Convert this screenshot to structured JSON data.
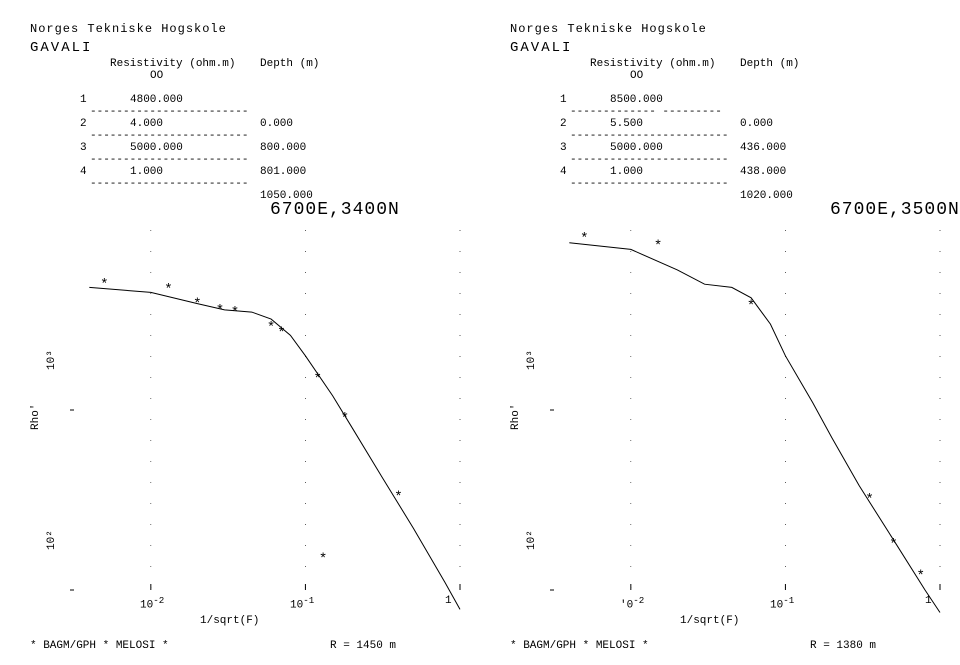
{
  "background_color": "#ffffff",
  "text_color": "#000000",
  "font_family": "Courier New",
  "panels": [
    {
      "org": "Norges Tekniske Hogskole",
      "title": "GAVALI",
      "table": {
        "header_res": "Resistivity (ohm.m)",
        "header_dep": "Depth (m)",
        "oo": "OO",
        "rows": [
          {
            "idx": "1",
            "depth": "0.000"
          },
          {
            "idx": "2",
            "depth": "800.000"
          },
          {
            "idx": "3",
            "depth": "801.000"
          },
          {
            "idx": "4",
            "depth": "1050.000"
          }
        ],
        "vals": [
          "4800.000",
          "4.000",
          "5000.000",
          "1.000"
        ]
      },
      "plot": {
        "title": "6700E,3400N",
        "type": "line+scatter",
        "xscale": "log",
        "yscale": "log",
        "xlabel": "1/sqrt(F)",
        "ylabel": "Rho'",
        "ylim": [
          100,
          10000
        ],
        "xlim": [
          0.003,
          1
        ],
        "xtick_labels": [
          "10⁻²",
          "10⁻¹",
          "1"
        ],
        "ytick_labels": [
          "10²",
          "10³"
        ],
        "line_color": "#000000",
        "marker_color": "#000000",
        "marker_symbol": "*",
        "line_width": 1,
        "line_points": [
          [
            0.004,
            4800
          ],
          [
            0.01,
            4500
          ],
          [
            0.02,
            3900
          ],
          [
            0.03,
            3600
          ],
          [
            0.045,
            3500
          ],
          [
            0.06,
            3200
          ],
          [
            0.08,
            2600
          ],
          [
            0.1,
            2000
          ],
          [
            0.15,
            1200
          ],
          [
            0.2,
            800
          ],
          [
            0.3,
            450
          ],
          [
            0.5,
            220
          ],
          [
            0.8,
            110
          ],
          [
            1.0,
            78
          ]
        ],
        "scatter_points": [
          [
            0.005,
            5000
          ],
          [
            0.013,
            4700
          ],
          [
            0.02,
            3900
          ],
          [
            0.028,
            3600
          ],
          [
            0.035,
            3500
          ],
          [
            0.06,
            2900
          ],
          [
            0.07,
            2700
          ],
          [
            0.12,
            1500
          ],
          [
            0.18,
            900
          ],
          [
            0.13,
            150
          ],
          [
            0.4,
            330
          ]
        ],
        "footer_left": "* BAGM/GPH * MELOSI *",
        "footer_right": "R = 1450 m"
      }
    },
    {
      "org": "Norges Tekniske Hogskole",
      "title": "GAVALI",
      "table": {
        "header_res": "Resistivity (ohm.m)",
        "header_dep": "Depth (m)",
        "oo": "OO",
        "rows": [
          {
            "idx": "1",
            "depth": "0.000"
          },
          {
            "idx": "2",
            "depth": "436.000"
          },
          {
            "idx": "3",
            "depth": "438.000"
          },
          {
            "idx": "4",
            "depth": "1020.000"
          }
        ],
        "vals": [
          "8500.000",
          "5.500",
          "5000.000",
          "1.000"
        ]
      },
      "plot": {
        "title": "6700E,3500N",
        "type": "line+scatter",
        "xscale": "log",
        "yscale": "log",
        "xlabel": "1/sqrt(F)",
        "ylabel": "Rho'",
        "ylim": [
          100,
          10000
        ],
        "xlim": [
          0.003,
          1
        ],
        "xtick_labels": [
          "'0⁻²",
          "10⁻¹",
          "1"
        ],
        "ytick_labels": [
          "10²",
          "10³"
        ],
        "line_color": "#000000",
        "marker_color": "#000000",
        "marker_symbol": "*",
        "line_width": 1,
        "line_points": [
          [
            0.004,
            8500
          ],
          [
            0.01,
            7800
          ],
          [
            0.02,
            6000
          ],
          [
            0.03,
            5000
          ],
          [
            0.045,
            4800
          ],
          [
            0.06,
            4200
          ],
          [
            0.08,
            3000
          ],
          [
            0.1,
            2000
          ],
          [
            0.15,
            1100
          ],
          [
            0.2,
            700
          ],
          [
            0.3,
            380
          ],
          [
            0.5,
            190
          ],
          [
            0.8,
            100
          ],
          [
            1.0,
            75
          ]
        ],
        "scatter_points": [
          [
            0.005,
            9000
          ],
          [
            0.015,
            8200
          ],
          [
            0.06,
            3800
          ],
          [
            0.35,
            320
          ],
          [
            0.5,
            180
          ],
          [
            0.75,
            120
          ]
        ],
        "footer_left": "* BAGM/GPH * MELOSI *",
        "footer_right": "R = 1380 m"
      }
    }
  ]
}
